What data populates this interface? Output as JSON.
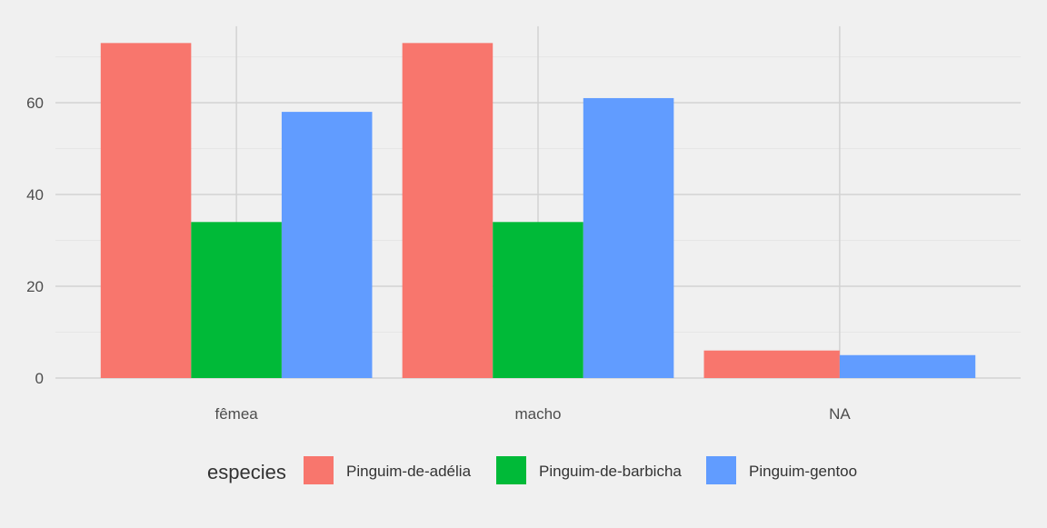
{
  "chart_data": {
    "type": "bar",
    "categories": [
      "fêmea",
      "macho",
      "NA"
    ],
    "series": [
      {
        "name": "Pinguim-de-adélia",
        "values": [
          73,
          73,
          6
        ],
        "color": "#F8766D"
      },
      {
        "name": "Pinguim-de-barbicha",
        "values": [
          34,
          34,
          null
        ],
        "color": "#00BA38"
      },
      {
        "name": "Pinguim-gentoo",
        "values": [
          58,
          61,
          5
        ],
        "color": "#619CFF"
      }
    ],
    "title": "",
    "xlabel": "",
    "ylabel": "",
    "ylim": [
      0,
      76.65
    ],
    "yticks": [
      0,
      20,
      40,
      60
    ],
    "grid": true,
    "legend": {
      "title": "especies",
      "position": "bottom"
    },
    "background": "#F0F0F0",
    "grid_color": "#D2D2D2"
  }
}
